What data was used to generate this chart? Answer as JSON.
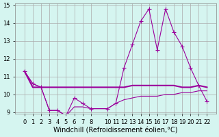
{
  "x": [
    0,
    1,
    2,
    3,
    4,
    5,
    6,
    7,
    8,
    10,
    11,
    12,
    13,
    14,
    15,
    16,
    17,
    18,
    19,
    20,
    21,
    22
  ],
  "line1": [
    11.3,
    10.6,
    10.4,
    9.1,
    9.1,
    8.8,
    9.8,
    9.5,
    9.2,
    9.2,
    9.5,
    11.5,
    12.8,
    14.1,
    14.8,
    12.5,
    14.8,
    13.5,
    12.7,
    11.5,
    10.5,
    9.6
  ],
  "line2": [
    11.3,
    10.4,
    10.4,
    10.4,
    10.4,
    10.4,
    10.4,
    10.4,
    10.4,
    10.4,
    10.4,
    10.4,
    10.5,
    10.5,
    10.5,
    10.5,
    10.5,
    10.5,
    10.4,
    10.4,
    10.5,
    10.4
  ],
  "line3": [
    11.3,
    10.6,
    10.4,
    9.1,
    9.1,
    8.8,
    9.3,
    9.3,
    9.2,
    9.2,
    9.5,
    9.7,
    9.8,
    9.9,
    9.9,
    9.9,
    10.0,
    10.0,
    10.1,
    10.1,
    10.2,
    10.2
  ],
  "line_color": "#9b009b",
  "bg_color": "#d5f5f0",
  "grid_color": "#aaaaaa",
  "ylim": [
    9,
    15
  ],
  "yticks": [
    9,
    10,
    11,
    12,
    13,
    14,
    15
  ],
  "xticks": [
    0,
    1,
    2,
    3,
    4,
    5,
    6,
    7,
    8,
    10,
    11,
    12,
    13,
    14,
    15,
    16,
    17,
    18,
    19,
    20,
    21,
    22
  ],
  "xlabel": "Windchill (Refroidissement éolien,°C)",
  "xlabel_fontsize": 7,
  "tick_fontsize": 6
}
